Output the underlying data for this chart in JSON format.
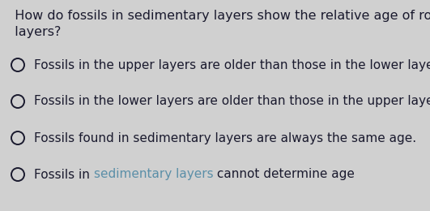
{
  "background_color": "#d0d0d0",
  "question_line1": "  How do fossils in sedimentary layers show the relative age of rock",
  "question_line2": "  layers?",
  "question_fontsize": 11.5,
  "question_color": "#1a1a2e",
  "options": [
    "Fossils in the upper layers are older than those in the lower layers.",
    "Fossils in the lower layers are older than those in the upper layers.",
    "Fossils found in sedimentary layers are always the same age.",
    "Fossils in sedimentary layers cannot determine age"
  ],
  "option_fontsize": 11.0,
  "option_color": "#1a1a2e",
  "highlight_color": "#5b8fa8",
  "option4_parts": [
    {
      "text": "Fossils in ",
      "color": "#1a1a2e"
    },
    {
      "text": "sedimentary layers",
      "color": "#5b8fa8"
    },
    {
      "text": " cannot determine age",
      "color": "#1a1a2e"
    }
  ]
}
